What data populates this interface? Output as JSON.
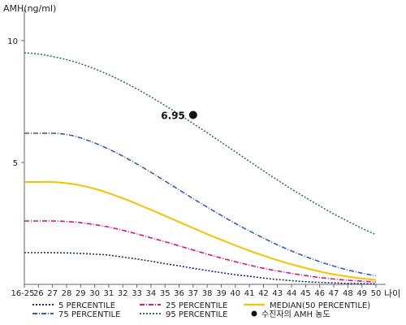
{
  "chart_data": {
    "type": "line",
    "ylabel": "AMH(ng/ml)",
    "xlabel": "나이",
    "ylim": [
      0,
      11
    ],
    "yticks": [
      5,
      10
    ],
    "categories": [
      "16-25",
      "26",
      "27",
      "28",
      "29",
      "30",
      "31",
      "32",
      "33",
      "34",
      "35",
      "36",
      "37",
      "38",
      "39",
      "40",
      "41",
      "42",
      "43",
      "44",
      "45",
      "46",
      "47",
      "48",
      "49",
      "50"
    ],
    "series": [
      {
        "name": "5 PERCENTILE",
        "color": "#1a2a80",
        "dash": "2,2",
        "values": [
          1.3,
          1.3,
          1.3,
          1.29,
          1.27,
          1.24,
          1.2,
          1.12,
          1.04,
          0.95,
          0.85,
          0.76,
          0.66,
          0.57,
          0.48,
          0.4,
          0.33,
          0.26,
          0.2,
          0.15,
          0.11,
          0.08,
          0.06,
          0.04,
          0.03,
          0.02
        ]
      },
      {
        "name": "25 PERCENTILE",
        "color": "#e0147c",
        "dash": "6,2,1,2",
        "values": [
          2.6,
          2.6,
          2.6,
          2.58,
          2.53,
          2.45,
          2.35,
          2.22,
          2.07,
          1.91,
          1.75,
          1.58,
          1.41,
          1.24,
          1.08,
          0.93,
          0.79,
          0.66,
          0.55,
          0.45,
          0.36,
          0.28,
          0.22,
          0.17,
          0.13,
          0.1
        ]
      },
      {
        "name": "MEDIAN(50 PERCENTILE)",
        "color": "#f5c400",
        "dash": "",
        "values": [
          4.2,
          4.2,
          4.2,
          4.15,
          4.06,
          3.92,
          3.74,
          3.53,
          3.3,
          3.06,
          2.81,
          2.56,
          2.31,
          2.06,
          1.83,
          1.6,
          1.38,
          1.18,
          0.99,
          0.82,
          0.67,
          0.53,
          0.41,
          0.32,
          0.24,
          0.18
        ]
      },
      {
        "name": "75 PERCENTILE",
        "color": "#3a5bb8",
        "dash": "6,2,1,2",
        "values": [
          6.2,
          6.2,
          6.2,
          6.15,
          6.01,
          5.8,
          5.55,
          5.26,
          4.94,
          4.6,
          4.24,
          3.88,
          3.52,
          3.17,
          2.83,
          2.5,
          2.19,
          1.9,
          1.62,
          1.37,
          1.14,
          0.93,
          0.75,
          0.59,
          0.46,
          0.35
        ]
      },
      {
        "name": "95 PERCENTILE",
        "color": "#2e7a44",
        "dash": "2,2",
        "values": [
          9.5,
          9.45,
          9.35,
          9.22,
          9.05,
          8.84,
          8.6,
          8.32,
          8.02,
          7.69,
          7.34,
          6.98,
          6.6,
          6.22,
          5.83,
          5.44,
          5.05,
          4.66,
          4.28,
          3.91,
          3.56,
          3.22,
          2.89,
          2.59,
          2.3,
          2.04
        ]
      }
    ],
    "point": {
      "name": "수진자의 AMH 농도",
      "x": "37",
      "y": 6.95,
      "label": "6.95",
      "color": "#111111"
    },
    "legend_position": "bottom",
    "grid": false
  }
}
